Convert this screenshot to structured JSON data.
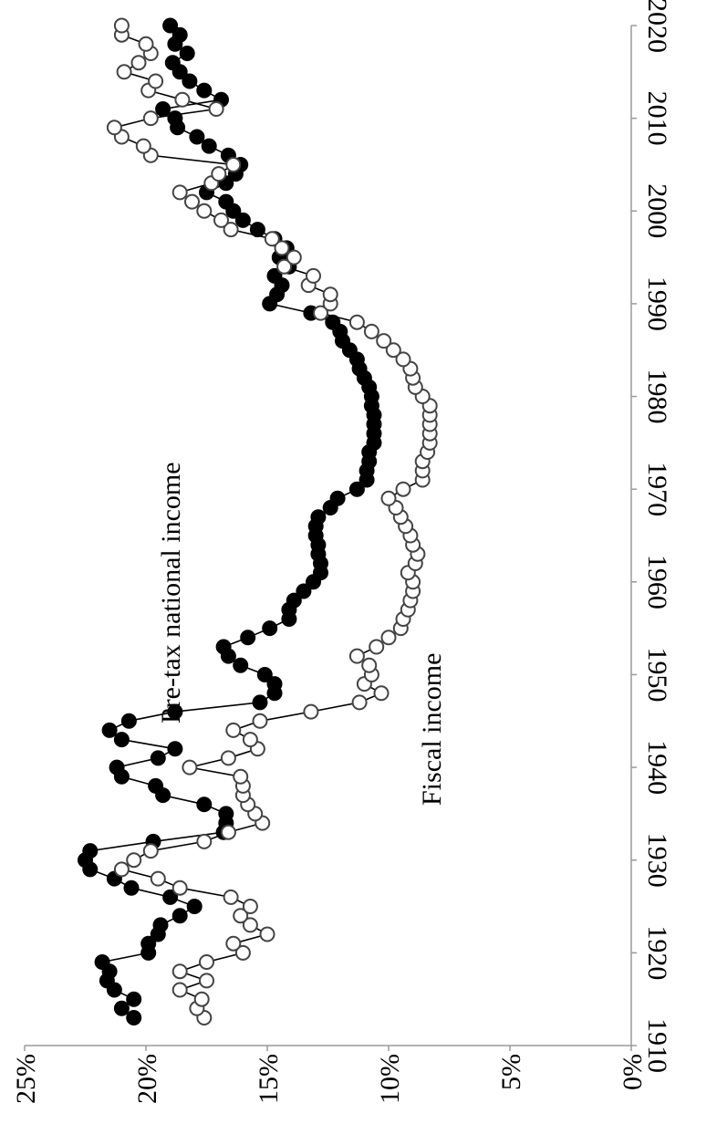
{
  "chart_data": {
    "type": "line",
    "orientation": "rotated 90° (x axis runs along the right edge, y axis along the bottom)",
    "x_ticks": [
      "1910",
      "1920",
      "1930",
      "1940",
      "1950",
      "1960",
      "1970",
      "1980",
      "1990",
      "2000",
      "2010",
      "2020"
    ],
    "y_ticks": [
      "0%",
      "5%",
      "10%",
      "15%",
      "20%",
      "25%"
    ],
    "xlim": [
      1910,
      2020
    ],
    "ylim": [
      0,
      25
    ],
    "grid": false,
    "legend": "none (series labelled inline)",
    "series": [
      {
        "name": "Pre-tax national income",
        "marker": "filled-circle",
        "color": "#000000",
        "points": [
          [
            1913,
            20.5
          ],
          [
            1914,
            21.0
          ],
          [
            1915,
            20.5
          ],
          [
            1916,
            21.3
          ],
          [
            1917,
            21.6
          ],
          [
            1918,
            21.5
          ],
          [
            1919,
            21.8
          ],
          [
            1920,
            19.9
          ],
          [
            1921,
            19.9
          ],
          [
            1922,
            19.5
          ],
          [
            1923,
            19.4
          ],
          [
            1924,
            18.6
          ],
          [
            1925,
            18.0
          ],
          [
            1926,
            19.0
          ],
          [
            1927,
            20.6
          ],
          [
            1928,
            21.3
          ],
          [
            1929,
            22.3
          ],
          [
            1930,
            22.5
          ],
          [
            1931,
            22.3
          ],
          [
            1932,
            19.7
          ],
          [
            1933,
            16.8
          ],
          [
            1934,
            16.7
          ],
          [
            1935,
            16.7
          ],
          [
            1936,
            17.6
          ],
          [
            1937,
            19.3
          ],
          [
            1938,
            19.6
          ],
          [
            1939,
            21.0
          ],
          [
            1940,
            21.2
          ],
          [
            1941,
            19.5
          ],
          [
            1942,
            18.8
          ],
          [
            1943,
            21.0
          ],
          [
            1944,
            21.5
          ],
          [
            1945,
            20.7
          ],
          [
            1946,
            18.8
          ],
          [
            1947,
            15.3
          ],
          [
            1948,
            14.7
          ],
          [
            1949,
            14.7
          ],
          [
            1950,
            15.1
          ],
          [
            1951,
            16.1
          ],
          [
            1952,
            16.6
          ],
          [
            1953,
            16.8
          ],
          [
            1954,
            15.8
          ],
          [
            1955,
            14.9
          ],
          [
            1956,
            14.1
          ],
          [
            1957,
            14.1
          ],
          [
            1958,
            13.9
          ],
          [
            1959,
            13.5
          ],
          [
            1960,
            13.1
          ],
          [
            1961,
            12.8
          ],
          [
            1962,
            12.8
          ],
          [
            1963,
            12.9
          ],
          [
            1964,
            12.9
          ],
          [
            1965,
            13.0
          ],
          [
            1966,
            13.0
          ],
          [
            1967,
            12.9
          ],
          [
            1968,
            12.4
          ],
          [
            1969,
            12.1
          ],
          [
            1970,
            11.3
          ],
          [
            1971,
            10.9
          ],
          [
            1972,
            10.9
          ],
          [
            1973,
            10.8
          ],
          [
            1974,
            10.8
          ],
          [
            1975,
            10.6
          ],
          [
            1976,
            10.6
          ],
          [
            1977,
            10.6
          ],
          [
            1978,
            10.6
          ],
          [
            1979,
            10.7
          ],
          [
            1980,
            10.7
          ],
          [
            1981,
            10.8
          ],
          [
            1982,
            11.0
          ],
          [
            1983,
            11.2
          ],
          [
            1984,
            11.3
          ],
          [
            1985,
            11.6
          ],
          [
            1986,
            11.9
          ],
          [
            1987,
            12.0
          ],
          [
            1988,
            12.3
          ],
          [
            1989,
            13.2
          ],
          [
            1990,
            14.9
          ],
          [
            1991,
            14.6
          ],
          [
            1992,
            14.4
          ],
          [
            1993,
            14.7
          ],
          [
            1994,
            14.1
          ],
          [
            1995,
            14.5
          ],
          [
            1996,
            14.2
          ],
          [
            1997,
            14.7
          ],
          [
            1998,
            15.4
          ],
          [
            1999,
            16.0
          ],
          [
            2000,
            16.4
          ],
          [
            2001,
            16.7
          ],
          [
            2002,
            17.5
          ],
          [
            2003,
            16.7
          ],
          [
            2004,
            16.3
          ],
          [
            2005,
            16.1
          ],
          [
            2006,
            16.6
          ],
          [
            2007,
            17.4
          ],
          [
            2008,
            17.9
          ],
          [
            2009,
            18.7
          ],
          [
            2010,
            18.8
          ],
          [
            2011,
            19.3
          ],
          [
            2012,
            16.9
          ],
          [
            2013,
            17.6
          ],
          [
            2014,
            18.2
          ],
          [
            2015,
            18.6
          ],
          [
            2016,
            18.9
          ],
          [
            2017,
            18.3
          ],
          [
            2018,
            18.8
          ],
          [
            2019,
            18.6
          ],
          [
            2020,
            19.0
          ]
        ]
      },
      {
        "name": "Fiscal income",
        "marker": "open-circle",
        "color": "#000000",
        "points": [
          [
            1913,
            17.6
          ],
          [
            1914,
            17.9
          ],
          [
            1915,
            17.7
          ],
          [
            1916,
            18.6
          ],
          [
            1917,
            17.5
          ],
          [
            1918,
            18.6
          ],
          [
            1919,
            17.5
          ],
          [
            1920,
            16.0
          ],
          [
            1921,
            16.4
          ],
          [
            1922,
            15.0
          ],
          [
            1923,
            15.7
          ],
          [
            1924,
            16.1
          ],
          [
            1925,
            15.7
          ],
          [
            1926,
            16.5
          ],
          [
            1927,
            18.6
          ],
          [
            1928,
            19.5
          ],
          [
            1929,
            21.0
          ],
          [
            1930,
            20.5
          ],
          [
            1931,
            19.8
          ],
          [
            1932,
            17.6
          ],
          [
            1933,
            16.6
          ],
          [
            1934,
            15.2
          ],
          [
            1935,
            15.5
          ],
          [
            1936,
            15.8
          ],
          [
            1937,
            16.0
          ],
          [
            1938,
            16.0
          ],
          [
            1939,
            16.1
          ],
          [
            1940,
            18.2
          ],
          [
            1941,
            16.6
          ],
          [
            1942,
            15.4
          ],
          [
            1943,
            15.7
          ],
          [
            1944,
            16.4
          ],
          [
            1945,
            15.3
          ],
          [
            1946,
            13.2
          ],
          [
            1947,
            11.2
          ],
          [
            1948,
            10.3
          ],
          [
            1949,
            11.0
          ],
          [
            1950,
            10.7
          ],
          [
            1951,
            10.8
          ],
          [
            1952,
            11.3
          ],
          [
            1953,
            10.5
          ],
          [
            1954,
            10.0
          ],
          [
            1955,
            9.5
          ],
          [
            1956,
            9.4
          ],
          [
            1957,
            9.2
          ],
          [
            1958,
            9.1
          ],
          [
            1959,
            9.0
          ],
          [
            1960,
            9.0
          ],
          [
            1961,
            9.2
          ],
          [
            1962,
            8.9
          ],
          [
            1963,
            8.8
          ],
          [
            1964,
            9.0
          ],
          [
            1965,
            9.1
          ],
          [
            1966,
            9.3
          ],
          [
            1967,
            9.5
          ],
          [
            1968,
            9.7
          ],
          [
            1969,
            10.0
          ],
          [
            1970,
            9.4
          ],
          [
            1971,
            8.6
          ],
          [
            1972,
            8.6
          ],
          [
            1973,
            8.6
          ],
          [
            1974,
            8.4
          ],
          [
            1975,
            8.3
          ],
          [
            1976,
            8.3
          ],
          [
            1977,
            8.3
          ],
          [
            1978,
            8.3
          ],
          [
            1979,
            8.3
          ],
          [
            1980,
            8.6
          ],
          [
            1981,
            8.9
          ],
          [
            1982,
            9.0
          ],
          [
            1983,
            9.1
          ],
          [
            1984,
            9.4
          ],
          [
            1985,
            9.8
          ],
          [
            1986,
            10.2
          ],
          [
            1987,
            10.7
          ],
          [
            1988,
            11.3
          ],
          [
            1989,
            12.8
          ],
          [
            1990,
            12.4
          ],
          [
            1991,
            12.4
          ],
          [
            1992,
            13.3
          ],
          [
            1993,
            13.1
          ],
          [
            1994,
            14.3
          ],
          [
            1995,
            13.9
          ],
          [
            1996,
            14.4
          ],
          [
            1997,
            14.8
          ],
          [
            1998,
            16.5
          ],
          [
            1999,
            16.9
          ],
          [
            2000,
            17.6
          ],
          [
            2001,
            18.1
          ],
          [
            2002,
            18.6
          ],
          [
            2003,
            17.3
          ],
          [
            2004,
            17.0
          ],
          [
            2005,
            16.4
          ],
          [
            2006,
            19.8
          ],
          [
            2007,
            20.1
          ],
          [
            2008,
            21.0
          ],
          [
            2009,
            21.3
          ],
          [
            2010,
            19.8
          ],
          [
            2011,
            17.1
          ],
          [
            2012,
            18.5
          ],
          [
            2013,
            19.9
          ],
          [
            2014,
            19.6
          ],
          [
            2015,
            20.9
          ],
          [
            2016,
            20.3
          ],
          [
            2017,
            19.8
          ],
          [
            2018,
            20.0
          ],
          [
            2019,
            21.0
          ],
          [
            2020,
            21.0
          ]
        ]
      }
    ],
    "annotations": [
      {
        "text": "Pre-tax national income",
        "series": 0
      },
      {
        "text": "Fiscal income",
        "series": 1
      }
    ]
  }
}
